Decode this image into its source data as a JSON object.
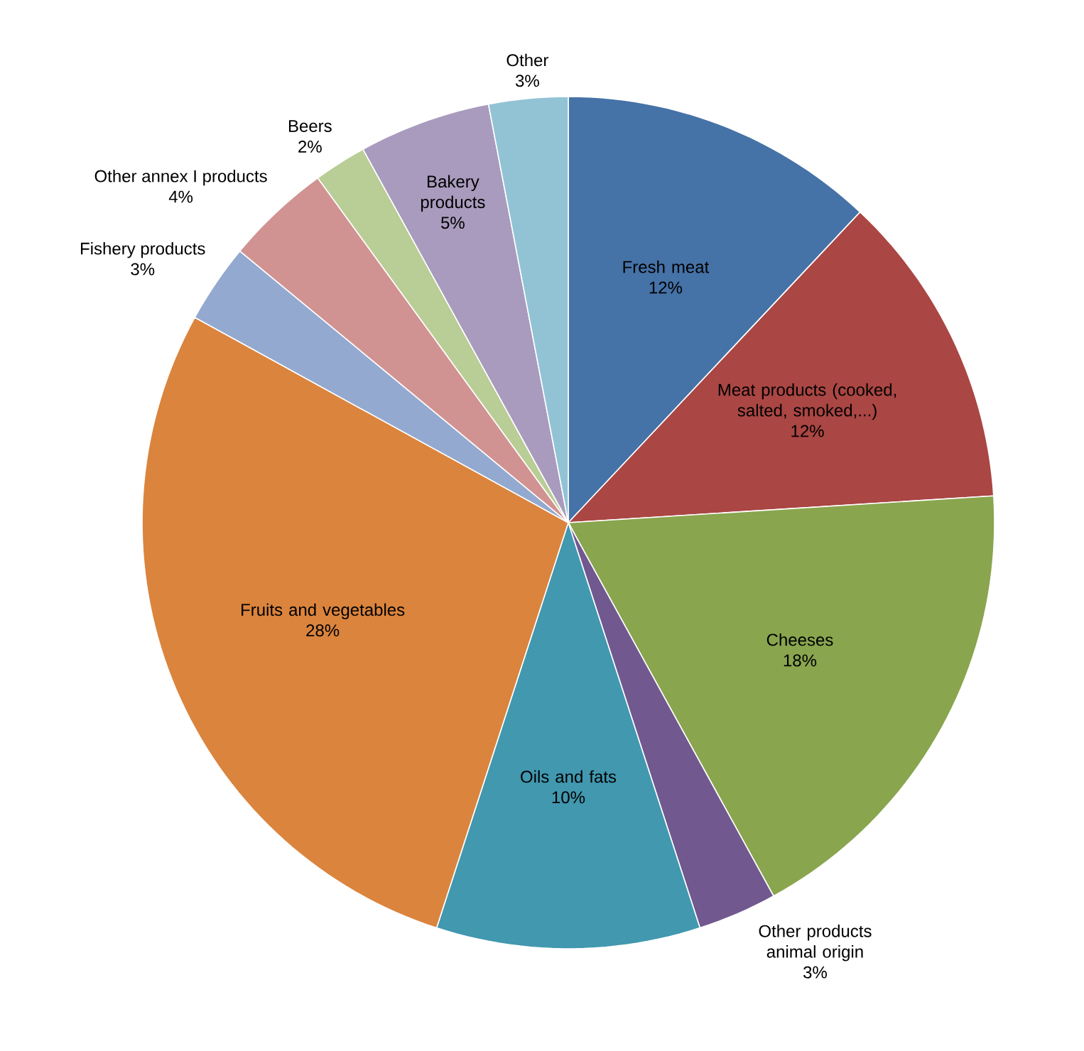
{
  "chart_data": {
    "type": "pie",
    "categories": [
      "Fresh meat",
      "Meat products (cooked, salted, smoked,...)",
      "Cheeses",
      "Other products animal origin",
      "Oils and fats",
      "Fruits and vegetables",
      "Fishery products",
      "Other annex I products",
      "Beers",
      "Bakery products",
      "Other"
    ],
    "values": [
      12,
      12,
      18,
      3,
      10,
      28,
      3,
      4,
      2,
      5,
      3
    ],
    "value_labels": [
      "12%",
      "12%",
      "18%",
      "3%",
      "10%",
      "28%",
      "3%",
      "4%",
      "2%",
      "5%",
      "3%"
    ],
    "colors": [
      "#4572a7",
      "#aa4643",
      "#89a54e",
      "#71588f",
      "#4198af",
      "#db843d",
      "#93a9cf",
      "#d19392",
      "#b9cd96",
      "#a99bbd",
      "#92c3d5"
    ]
  }
}
